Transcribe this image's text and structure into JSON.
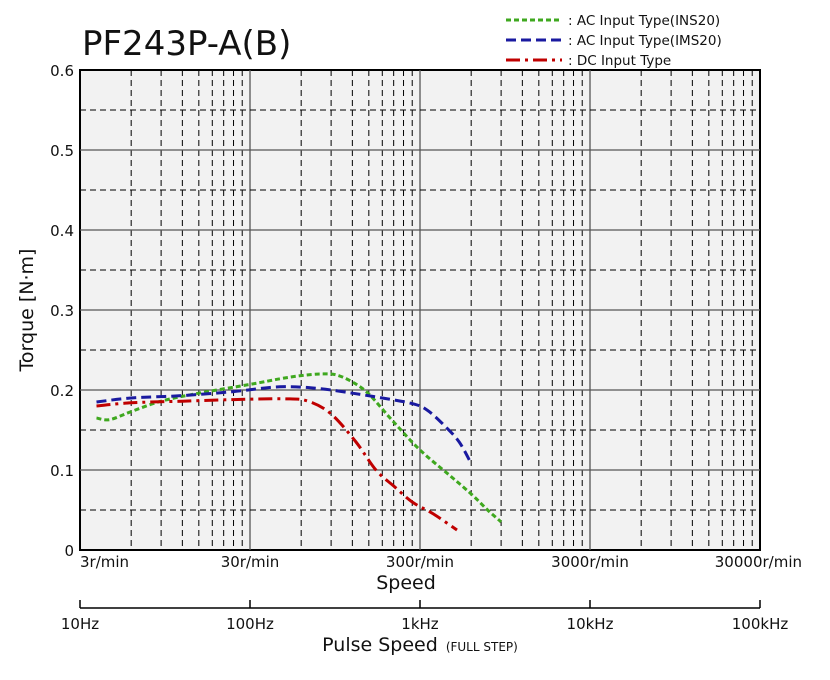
{
  "chart_data": {
    "type": "line",
    "title": "PF243P-A(B)",
    "x_scale": "log",
    "xlabel": "Speed",
    "ylabel": "Torque [N·m]",
    "ylim": [
      0,
      0.6
    ],
    "yticks": [
      "0",
      "0.1",
      "0.2",
      "0.3",
      "0.4",
      "0.5",
      "0.6"
    ],
    "xticks_speed": [
      "3r/min",
      "30r/min",
      "300r/min",
      "3000r/min",
      "30000r/min"
    ],
    "pulse_axis": {
      "label": "Pulse Speed",
      "label_note": "(FULL STEP)",
      "ticks": [
        "10Hz",
        "100Hz",
        "1kHz",
        "10kHz",
        "100kHz"
      ]
    },
    "grid": true,
    "legend_position": "top-right",
    "series": [
      {
        "name": ": AC Input Type(INS20)",
        "color": "#3fa81f",
        "dash": "dotted",
        "points": [
          [
            12.5,
            0.165
          ],
          [
            15,
            0.163
          ],
          [
            20,
            0.173
          ],
          [
            30,
            0.186
          ],
          [
            50,
            0.196
          ],
          [
            100,
            0.207
          ],
          [
            150,
            0.214
          ],
          [
            200,
            0.218
          ],
          [
            260,
            0.22
          ],
          [
            320,
            0.219
          ],
          [
            400,
            0.21
          ],
          [
            500,
            0.195
          ],
          [
            700,
            0.16
          ],
          [
            1000,
            0.125
          ],
          [
            1500,
            0.093
          ],
          [
            2000,
            0.07
          ],
          [
            2500,
            0.05
          ],
          [
            3000,
            0.035
          ]
        ]
      },
      {
        "name": ": AC Input Type(IMS20)",
        "color": "#1a1aa0",
        "dash": "dashed",
        "points": [
          [
            12.5,
            0.185
          ],
          [
            20,
            0.19
          ],
          [
            40,
            0.193
          ],
          [
            80,
            0.198
          ],
          [
            150,
            0.204
          ],
          [
            250,
            0.202
          ],
          [
            400,
            0.196
          ],
          [
            600,
            0.19
          ],
          [
            900,
            0.183
          ],
          [
            1100,
            0.175
          ],
          [
            1400,
            0.155
          ],
          [
            1700,
            0.135
          ],
          [
            2000,
            0.108
          ]
        ]
      },
      {
        "name": ": DC Input Type",
        "color": "#c00000",
        "dash": "dashdot",
        "points": [
          [
            12.5,
            0.18
          ],
          [
            20,
            0.184
          ],
          [
            40,
            0.186
          ],
          [
            80,
            0.188
          ],
          [
            160,
            0.189
          ],
          [
            220,
            0.186
          ],
          [
            300,
            0.17
          ],
          [
            420,
            0.135
          ],
          [
            550,
            0.1
          ],
          [
            700,
            0.08
          ],
          [
            900,
            0.06
          ],
          [
            1200,
            0.045
          ],
          [
            1650,
            0.025
          ]
        ]
      }
    ]
  }
}
